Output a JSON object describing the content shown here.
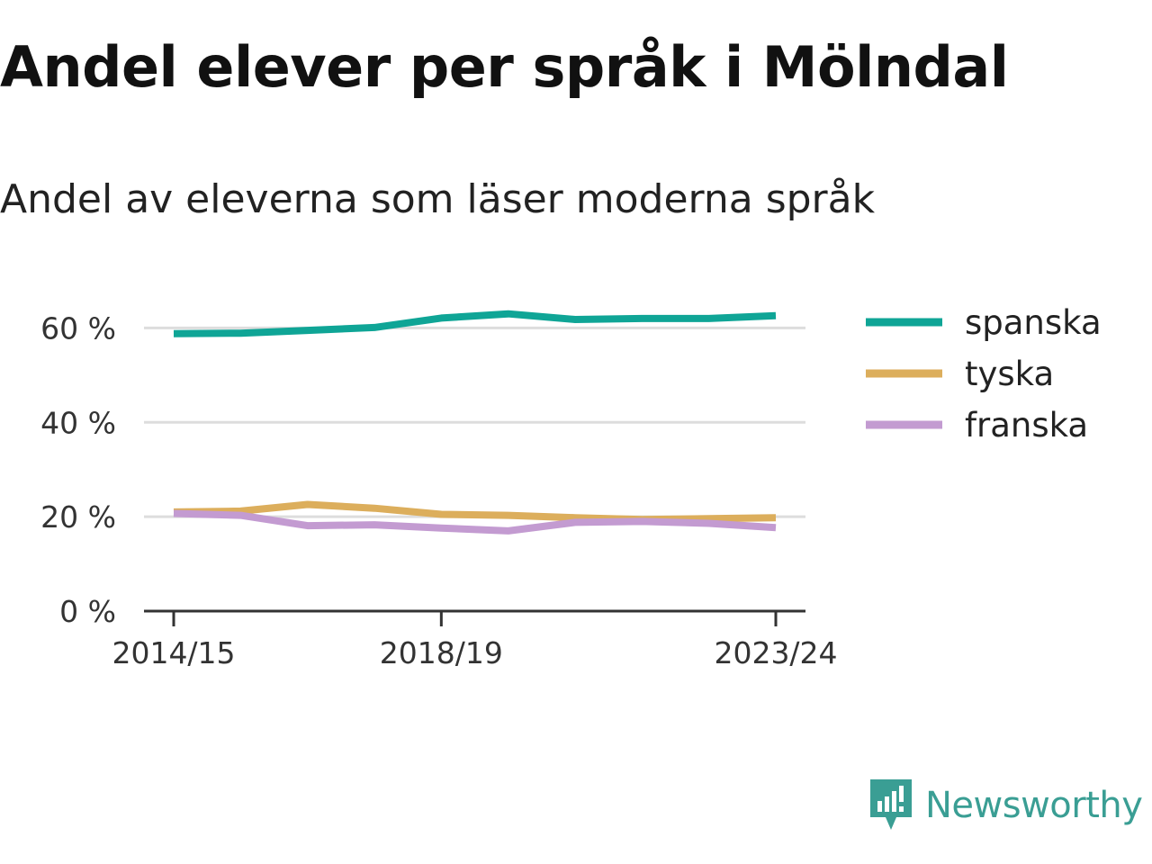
{
  "header": {
    "title": "Andel elever per språk i Mölndal",
    "subtitle": "Andel av eleverna som läser moderna språk"
  },
  "brand": {
    "name": "Newsworthy",
    "icon": "newsworthy-logo-icon",
    "color": "#3a9e94"
  },
  "chart_data": {
    "type": "line",
    "title": "Andel elever per språk i Mölndal",
    "subtitle": "Andel av eleverna som läser moderna språk",
    "xlabel": "",
    "ylabel": "",
    "x": [
      "2014/15",
      "2015/16",
      "2016/17",
      "2017/18",
      "2018/19",
      "2019/20",
      "2020/21",
      "2021/22",
      "2022/23",
      "2023/24"
    ],
    "x_tick_labels": [
      "2014/15",
      "2018/19",
      "2023/24"
    ],
    "ylim": [
      0,
      70
    ],
    "y_ticks": [
      0,
      20,
      40,
      60
    ],
    "y_tick_labels": [
      "0 %",
      "20 %",
      "40 %",
      "60 %"
    ],
    "grid": "horizontal",
    "legend_position": "right",
    "series": [
      {
        "name": "spanska",
        "color": "#0fa596",
        "values": [
          58.8,
          58.9,
          59.5,
          60.1,
          62.1,
          63.0,
          61.8,
          62.0,
          62.0,
          62.6
        ]
      },
      {
        "name": "tyska",
        "color": "#dcae5c",
        "values": [
          21.0,
          21.2,
          22.6,
          21.8,
          20.5,
          20.3,
          19.8,
          19.4,
          19.6,
          19.8
        ]
      },
      {
        "name": "franska",
        "color": "#c39bd1",
        "values": [
          20.7,
          20.3,
          18.1,
          18.3,
          17.6,
          17.0,
          18.8,
          19.0,
          18.6,
          17.7
        ]
      }
    ]
  }
}
